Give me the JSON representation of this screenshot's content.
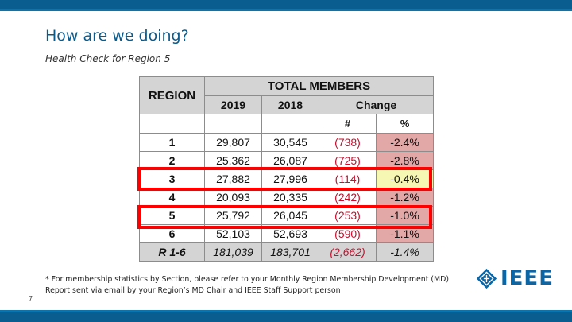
{
  "slide": {
    "title": "How are we doing?",
    "subtitle": "Health Check for Region 5",
    "footnote": "* For membership statistics by Section, please refer to your Monthly Region Membership Development (MD) Report sent via email by your Region’s MD Chair and IEEE Staff Support person",
    "page_number": "7",
    "logo_text": "IEEE"
  },
  "table": {
    "region_header": "REGION",
    "total_header": "TOTAL MEMBERS",
    "col_2019": "2019",
    "col_2018": "2018",
    "change_header": "Change",
    "col_num": "#",
    "col_pct": "%",
    "rows": [
      {
        "region": "1",
        "y2019": "29,807",
        "y2018": "30,545",
        "num": "(738)",
        "pct": "-2.4%"
      },
      {
        "region": "2",
        "y2019": "25,362",
        "y2018": "26,087",
        "num": "(725)",
        "pct": "-2.8%"
      },
      {
        "region": "3",
        "y2019": "27,882",
        "y2018": "27,996",
        "num": "(114)",
        "pct": "-0.4%"
      },
      {
        "region": "4",
        "y2019": "20,093",
        "y2018": "20,335",
        "num": "(242)",
        "pct": "-1.2%"
      },
      {
        "region": "5",
        "y2019": "25,792",
        "y2018": "26,045",
        "num": "(253)",
        "pct": "-1.0%"
      },
      {
        "region": "6",
        "y2019": "52,103",
        "y2018": "52,693",
        "num": "(590)",
        "pct": "-1.1%"
      }
    ],
    "total": {
      "region": "R 1-6",
      "y2019": "181,039",
      "y2018": "183,701",
      "num": "(2,662)",
      "pct": "-1.4%"
    }
  },
  "colors": {
    "accent": "#0a5e8f",
    "highlight": "#ff0000",
    "negative": "#c8102e",
    "pct_fill": "#e2a8a8",
    "pct_fill_best": "#f7f7b4"
  }
}
